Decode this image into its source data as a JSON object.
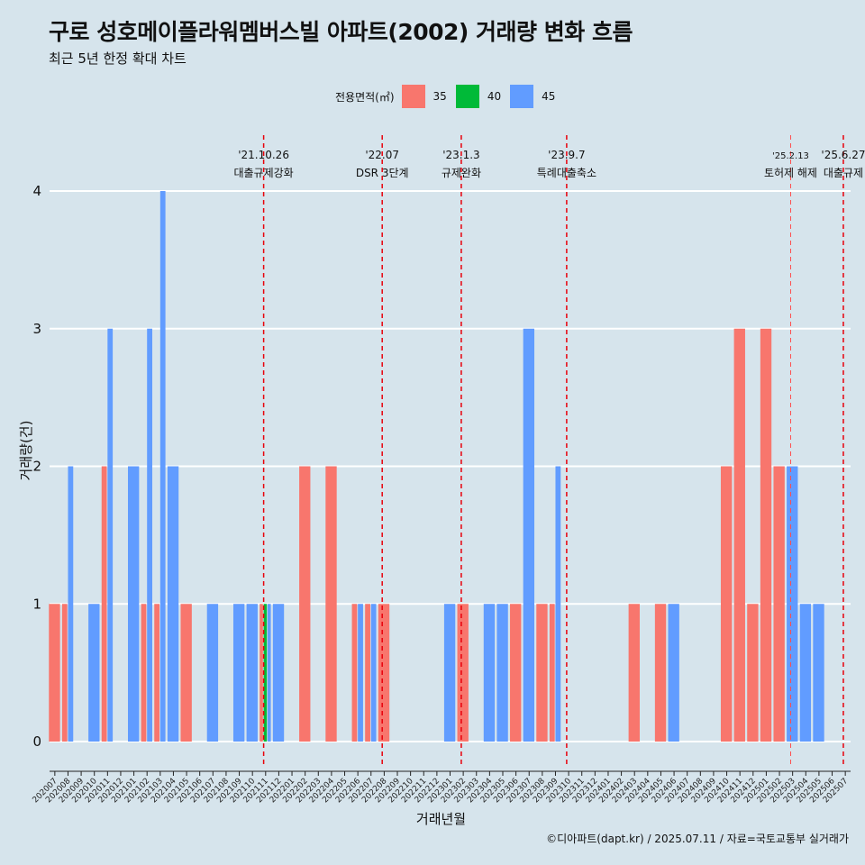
{
  "title": "구로 성호메이플라워멤버스빌 아파트(2002) 거래량 변화 흐름",
  "subtitle": "최근 5년 한정 확대 차트",
  "caption": "©디아파트(dapt.kr) / 2025.07.11 / 자료=국토교통부 실거래가",
  "legend": {
    "title": "전용면적(㎡)",
    "items": [
      {
        "label": "35",
        "color": "#f8766d"
      },
      {
        "label": "40",
        "color": "#00ba38"
      },
      {
        "label": "45",
        "color": "#619cff"
      }
    ]
  },
  "chart_data": {
    "type": "bar",
    "xlabel": "거래년월",
    "ylabel": "거래량(건)",
    "ylim": [
      0,
      4
    ],
    "yticks": [
      0,
      1,
      2,
      3,
      4
    ],
    "grid": "horizontal",
    "legend_position": "top",
    "categories": [
      "202007",
      "202008",
      "202009",
      "202010",
      "202011",
      "202012",
      "202101",
      "202102",
      "202103",
      "202104",
      "202105",
      "202106",
      "202107",
      "202108",
      "202109",
      "202110",
      "202111",
      "202112",
      "202201",
      "202202",
      "202203",
      "202204",
      "202205",
      "202206",
      "202207",
      "202208",
      "202209",
      "202210",
      "202211",
      "202212",
      "202301",
      "202302",
      "202303",
      "202304",
      "202305",
      "202306",
      "202307",
      "202308",
      "202309",
      "202310",
      "202311",
      "202312",
      "202401",
      "202402",
      "202403",
      "202404",
      "202405",
      "202406",
      "202407",
      "202408",
      "202409",
      "202410",
      "202411",
      "202412",
      "202501",
      "202502",
      "202503",
      "202504",
      "202505",
      "202506",
      "202507"
    ],
    "series": [
      {
        "name": "35",
        "color": "#f8766d",
        "values": [
          1,
          1,
          0,
          0,
          2,
          0,
          0,
          1,
          1,
          0,
          1,
          0,
          0,
          0,
          0,
          0,
          1,
          0,
          0,
          2,
          0,
          2,
          0,
          1,
          1,
          1,
          0,
          0,
          0,
          0,
          0,
          1,
          0,
          0,
          0,
          1,
          0,
          1,
          1,
          0,
          0,
          0,
          0,
          0,
          1,
          0,
          1,
          0,
          0,
          0,
          0,
          2,
          3,
          1,
          3,
          2,
          0,
          0,
          0,
          0,
          0
        ]
      },
      {
        "name": "40",
        "color": "#00ba38",
        "values": [
          0,
          0,
          0,
          0,
          0,
          0,
          0,
          0,
          0,
          0,
          0,
          0,
          0,
          0,
          0,
          0,
          1,
          0,
          0,
          0,
          0,
          0,
          0,
          0,
          0,
          0,
          0,
          0,
          0,
          0,
          0,
          0,
          0,
          0,
          0,
          0,
          0,
          0,
          0,
          0,
          0,
          0,
          0,
          0,
          0,
          0,
          0,
          0,
          0,
          0,
          0,
          0,
          0,
          0,
          0,
          0,
          0,
          0,
          0,
          0,
          0
        ]
      },
      {
        "name": "45",
        "color": "#619cff",
        "values": [
          0,
          2,
          0,
          1,
          3,
          0,
          2,
          3,
          4,
          2,
          0,
          0,
          1,
          0,
          1,
          1,
          1,
          1,
          0,
          0,
          0,
          0,
          0,
          1,
          1,
          0,
          0,
          0,
          0,
          0,
          1,
          0,
          0,
          1,
          1,
          0,
          3,
          0,
          2,
          0,
          0,
          0,
          0,
          0,
          0,
          0,
          0,
          1,
          0,
          0,
          0,
          0,
          0,
          0,
          0,
          0,
          2,
          1,
          1,
          0,
          0
        ]
      }
    ],
    "annotations": [
      {
        "date": "'21.10.26",
        "label": "대출규제강화",
        "x": 15.85
      },
      {
        "date": "'22.07",
        "label": "DSR 3단계",
        "x": 24.85
      },
      {
        "date": "'23.1.3",
        "label": "규제완화",
        "x": 30.85
      },
      {
        "date": "'23.9.7",
        "label": "특례대출축소",
        "x": 38.85
      },
      {
        "date": "'25.2.13",
        "label": "토허제 해제",
        "x": 55.85
      },
      {
        "date": "'25.6.27",
        "label": "대출규제",
        "x": 59.85
      }
    ]
  }
}
